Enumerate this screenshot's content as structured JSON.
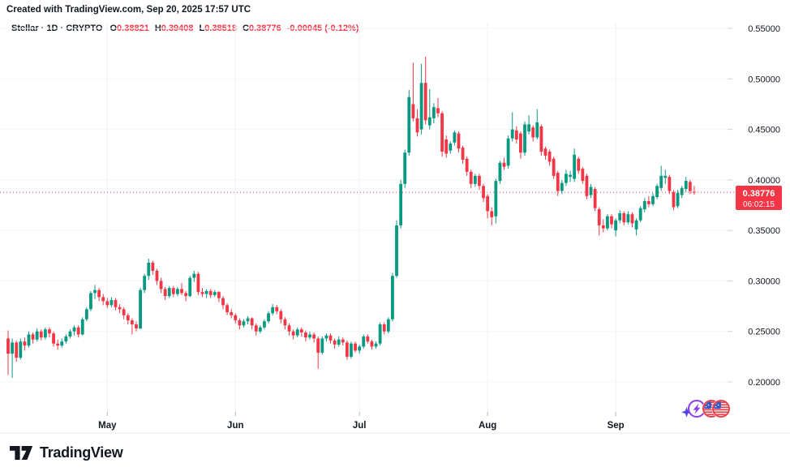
{
  "header": {
    "created_line": "Created with TradingView.com, Sep 20, 2025 17:57 UTC"
  },
  "legend": {
    "title": "Stellar · 1D · CRYPTO",
    "items": [
      {
        "label": "O",
        "value": "0.38821"
      },
      {
        "label": "H",
        "value": "0.39408"
      },
      {
        "label": "L",
        "value": "0.38518"
      },
      {
        "label": "C",
        "value": "0.38776"
      }
    ],
    "change": "-0.00045 (-0.12%)"
  },
  "price_badge": {
    "price": "0.38776",
    "countdown": "06:02:15"
  },
  "footer": {
    "brand": "TradingView"
  },
  "icons": [
    "sparkle-icon",
    "lightning-circle-icon",
    "us-flag-coin-icon",
    "us-flag-coin-icon-2"
  ],
  "colors": {
    "up": "#089981",
    "down": "#F23645",
    "accent_red": "#F23645",
    "text": "#131722",
    "grid_h": "#F6F7F9",
    "grid_v": "#F1F2F5",
    "axis_tick": "#D1D4DC",
    "time_tick": "#B2B5BE",
    "separator": "#E6E8EC",
    "icon_purple": "#8B3BE8",
    "icon_indigo": "#4F46E5",
    "flag_blue": "#3A57C4",
    "flag_red": "#E8414D"
  },
  "chart_data": {
    "type": "candlestick",
    "symbol": "Stellar",
    "interval": "1D",
    "exchange": "CRYPTO",
    "legend_ohlc": {
      "o": 0.38821,
      "h": 0.39408,
      "l": 0.38518,
      "c": 0.38776,
      "change": -0.00045,
      "change_pct": -0.12
    },
    "current_price": 0.38776,
    "countdown": "06:02:15",
    "y_axis": {
      "tick_labels": [
        "0.55000",
        "0.50000",
        "0.45000",
        "0.40000",
        "0.35000",
        "0.30000",
        "0.25000",
        "0.20000"
      ],
      "tick_values": [
        0.55,
        0.5,
        0.45,
        0.4,
        0.35,
        0.3,
        0.25,
        0.2
      ],
      "visible_range": [
        0.17,
        0.556
      ]
    },
    "x_axis": {
      "month_labels": [
        "May",
        "Jun",
        "Jul",
        "Aug",
        "Sep"
      ],
      "month_start_indices": [
        24,
        55,
        85,
        116,
        147
      ]
    },
    "grid": true,
    "candles": [
      [
        0.243,
        0.251,
        0.207,
        0.228
      ],
      [
        0.228,
        0.243,
        0.204,
        0.239
      ],
      [
        0.239,
        0.241,
        0.22,
        0.224
      ],
      [
        0.224,
        0.243,
        0.222,
        0.24
      ],
      [
        0.24,
        0.244,
        0.231,
        0.236
      ],
      [
        0.236,
        0.25,
        0.234,
        0.247
      ],
      [
        0.247,
        0.249,
        0.238,
        0.242
      ],
      [
        0.242,
        0.253,
        0.24,
        0.25
      ],
      [
        0.25,
        0.252,
        0.241,
        0.244
      ],
      [
        0.244,
        0.254,
        0.242,
        0.252
      ],
      [
        0.252,
        0.254,
        0.244,
        0.248
      ],
      [
        0.248,
        0.25,
        0.235,
        0.238
      ],
      [
        0.238,
        0.242,
        0.232,
        0.236
      ],
      [
        0.236,
        0.243,
        0.234,
        0.24
      ],
      [
        0.24,
        0.247,
        0.238,
        0.245
      ],
      [
        0.245,
        0.252,
        0.243,
        0.25
      ],
      [
        0.25,
        0.256,
        0.246,
        0.254
      ],
      [
        0.254,
        0.256,
        0.244,
        0.247
      ],
      [
        0.247,
        0.264,
        0.246,
        0.262
      ],
      [
        0.262,
        0.274,
        0.26,
        0.272
      ],
      [
        0.272,
        0.29,
        0.27,
        0.288
      ],
      [
        0.288,
        0.296,
        0.282,
        0.291
      ],
      [
        0.291,
        0.293,
        0.28,
        0.284
      ],
      [
        0.284,
        0.287,
        0.276,
        0.28
      ],
      [
        0.28,
        0.283,
        0.273,
        0.276
      ],
      [
        0.276,
        0.284,
        0.274,
        0.281
      ],
      [
        0.281,
        0.283,
        0.271,
        0.274
      ],
      [
        0.274,
        0.277,
        0.268,
        0.272
      ],
      [
        0.272,
        0.274,
        0.262,
        0.266
      ],
      [
        0.266,
        0.268,
        0.257,
        0.261
      ],
      [
        0.261,
        0.263,
        0.247,
        0.257
      ],
      [
        0.257,
        0.26,
        0.25,
        0.253
      ],
      [
        0.253,
        0.293,
        0.252,
        0.291
      ],
      [
        0.291,
        0.307,
        0.288,
        0.305
      ],
      [
        0.305,
        0.322,
        0.301,
        0.318
      ],
      [
        0.318,
        0.32,
        0.306,
        0.31
      ],
      [
        0.31,
        0.312,
        0.296,
        0.3
      ],
      [
        0.3,
        0.303,
        0.288,
        0.292
      ],
      [
        0.292,
        0.294,
        0.281,
        0.285
      ],
      [
        0.285,
        0.295,
        0.283,
        0.293
      ],
      [
        0.293,
        0.295,
        0.284,
        0.287
      ],
      [
        0.287,
        0.294,
        0.285,
        0.292
      ],
      [
        0.292,
        0.298,
        0.286,
        0.288
      ],
      [
        0.288,
        0.29,
        0.28,
        0.285
      ],
      [
        0.285,
        0.305,
        0.284,
        0.303
      ],
      [
        0.303,
        0.31,
        0.299,
        0.307
      ],
      [
        0.307,
        0.309,
        0.286,
        0.289
      ],
      [
        0.289,
        0.293,
        0.284,
        0.287
      ],
      [
        0.287,
        0.292,
        0.283,
        0.29
      ],
      [
        0.29,
        0.292,
        0.283,
        0.286
      ],
      [
        0.286,
        0.291,
        0.284,
        0.289
      ],
      [
        0.289,
        0.29,
        0.279,
        0.283
      ],
      [
        0.283,
        0.285,
        0.272,
        0.276
      ],
      [
        0.276,
        0.278,
        0.266,
        0.269
      ],
      [
        0.269,
        0.272,
        0.263,
        0.266
      ],
      [
        0.266,
        0.268,
        0.258,
        0.261
      ],
      [
        0.261,
        0.263,
        0.252,
        0.256
      ],
      [
        0.256,
        0.262,
        0.254,
        0.26
      ],
      [
        0.26,
        0.265,
        0.257,
        0.263
      ],
      [
        0.263,
        0.264,
        0.252,
        0.256
      ],
      [
        0.256,
        0.258,
        0.246,
        0.25
      ],
      [
        0.25,
        0.256,
        0.248,
        0.254
      ],
      [
        0.254,
        0.262,
        0.252,
        0.26
      ],
      [
        0.26,
        0.27,
        0.258,
        0.268
      ],
      [
        0.268,
        0.277,
        0.266,
        0.274
      ],
      [
        0.274,
        0.276,
        0.267,
        0.27
      ],
      [
        0.27,
        0.272,
        0.258,
        0.262
      ],
      [
        0.262,
        0.264,
        0.252,
        0.256
      ],
      [
        0.256,
        0.258,
        0.246,
        0.25
      ],
      [
        0.25,
        0.252,
        0.242,
        0.246
      ],
      [
        0.246,
        0.254,
        0.244,
        0.252
      ],
      [
        0.252,
        0.254,
        0.245,
        0.249
      ],
      [
        0.249,
        0.251,
        0.24,
        0.244
      ],
      [
        0.244,
        0.25,
        0.242,
        0.247
      ],
      [
        0.247,
        0.249,
        0.239,
        0.243
      ],
      [
        0.243,
        0.245,
        0.213,
        0.229
      ],
      [
        0.229,
        0.245,
        0.227,
        0.243
      ],
      [
        0.243,
        0.248,
        0.24,
        0.246
      ],
      [
        0.246,
        0.248,
        0.238,
        0.241
      ],
      [
        0.241,
        0.243,
        0.233,
        0.237
      ],
      [
        0.237,
        0.245,
        0.235,
        0.242
      ],
      [
        0.242,
        0.244,
        0.236,
        0.239
      ],
      [
        0.239,
        0.241,
        0.222,
        0.225
      ],
      [
        0.225,
        0.24,
        0.223,
        0.238
      ],
      [
        0.238,
        0.24,
        0.229,
        0.231
      ],
      [
        0.231,
        0.237,
        0.228,
        0.235
      ],
      [
        0.235,
        0.247,
        0.233,
        0.245
      ],
      [
        0.245,
        0.247,
        0.238,
        0.24
      ],
      [
        0.24,
        0.242,
        0.232,
        0.235
      ],
      [
        0.235,
        0.24,
        0.233,
        0.238
      ],
      [
        0.238,
        0.259,
        0.236,
        0.257
      ],
      [
        0.257,
        0.259,
        0.247,
        0.25
      ],
      [
        0.25,
        0.264,
        0.248,
        0.262
      ],
      [
        0.262,
        0.308,
        0.26,
        0.305
      ],
      [
        0.305,
        0.36,
        0.303,
        0.355
      ],
      [
        0.355,
        0.4,
        0.352,
        0.396
      ],
      [
        0.396,
        0.43,
        0.392,
        0.427
      ],
      [
        0.427,
        0.489,
        0.424,
        0.482
      ],
      [
        0.475,
        0.516,
        0.458,
        0.461
      ],
      [
        0.461,
        0.47,
        0.443,
        0.447
      ],
      [
        0.45,
        0.515,
        0.445,
        0.496
      ],
      [
        0.496,
        0.522,
        0.455,
        0.459
      ],
      [
        0.454,
        0.49,
        0.45,
        0.462
      ],
      [
        0.461,
        0.476,
        0.456,
        0.472
      ],
      [
        0.471,
        0.481,
        0.462,
        0.466
      ],
      [
        0.466,
        0.468,
        0.423,
        0.428
      ],
      [
        0.44,
        0.444,
        0.422,
        0.426
      ],
      [
        0.429,
        0.438,
        0.426,
        0.436
      ],
      [
        0.437,
        0.449,
        0.434,
        0.447
      ],
      [
        0.446,
        0.448,
        0.427,
        0.431
      ],
      [
        0.432,
        0.434,
        0.416,
        0.42
      ],
      [
        0.421,
        0.423,
        0.404,
        0.408
      ],
      [
        0.408,
        0.41,
        0.392,
        0.396
      ],
      [
        0.396,
        0.406,
        0.393,
        0.404
      ],
      [
        0.404,
        0.406,
        0.39,
        0.394
      ],
      [
        0.394,
        0.396,
        0.378,
        0.382
      ],
      [
        0.384,
        0.386,
        0.362,
        0.369
      ],
      [
        0.369,
        0.373,
        0.355,
        0.363
      ],
      [
        0.364,
        0.401,
        0.357,
        0.399
      ],
      [
        0.399,
        0.419,
        0.396,
        0.417
      ],
      [
        0.417,
        0.422,
        0.41,
        0.413
      ],
      [
        0.414,
        0.444,
        0.411,
        0.441
      ],
      [
        0.441,
        0.467,
        0.438,
        0.45
      ],
      [
        0.449,
        0.453,
        0.436,
        0.44
      ],
      [
        0.446,
        0.448,
        0.421,
        0.427
      ],
      [
        0.427,
        0.458,
        0.424,
        0.455
      ],
      [
        0.448,
        0.464,
        0.445,
        0.455
      ],
      [
        0.452,
        0.454,
        0.438,
        0.442
      ],
      [
        0.442,
        0.47,
        0.44,
        0.457
      ],
      [
        0.453,
        0.455,
        0.424,
        0.428
      ],
      [
        0.431,
        0.433,
        0.42,
        0.424
      ],
      [
        0.428,
        0.43,
        0.414,
        0.418
      ],
      [
        0.421,
        0.423,
        0.401,
        0.404
      ],
      [
        0.407,
        0.409,
        0.384,
        0.389
      ],
      [
        0.389,
        0.4,
        0.386,
        0.397
      ],
      [
        0.397,
        0.41,
        0.394,
        0.406
      ],
      [
        0.403,
        0.409,
        0.398,
        0.405
      ],
      [
        0.401,
        0.431,
        0.398,
        0.425
      ],
      [
        0.421,
        0.423,
        0.406,
        0.409
      ],
      [
        0.411,
        0.413,
        0.396,
        0.399
      ],
      [
        0.404,
        0.406,
        0.381,
        0.384
      ],
      [
        0.385,
        0.396,
        0.382,
        0.393
      ],
      [
        0.391,
        0.393,
        0.369,
        0.372
      ],
      [
        0.371,
        0.373,
        0.345,
        0.355
      ],
      [
        0.355,
        0.361,
        0.348,
        0.352
      ],
      [
        0.352,
        0.366,
        0.35,
        0.364
      ],
      [
        0.364,
        0.366,
        0.352,
        0.356
      ],
      [
        0.35,
        0.362,
        0.344,
        0.36
      ],
      [
        0.36,
        0.37,
        0.357,
        0.367
      ],
      [
        0.367,
        0.369,
        0.355,
        0.358
      ],
      [
        0.358,
        0.369,
        0.356,
        0.366
      ],
      [
        0.366,
        0.368,
        0.353,
        0.357
      ],
      [
        0.351,
        0.362,
        0.345,
        0.36
      ],
      [
        0.36,
        0.374,
        0.358,
        0.372
      ],
      [
        0.371,
        0.382,
        0.368,
        0.379
      ],
      [
        0.379,
        0.384,
        0.373,
        0.376
      ],
      [
        0.376,
        0.387,
        0.374,
        0.384
      ],
      [
        0.383,
        0.396,
        0.381,
        0.394
      ],
      [
        0.392,
        0.414,
        0.389,
        0.404
      ],
      [
        0.402,
        0.41,
        0.396,
        0.404
      ],
      [
        0.403,
        0.405,
        0.386,
        0.389
      ],
      [
        0.388,
        0.39,
        0.37,
        0.373
      ],
      [
        0.374,
        0.39,
        0.372,
        0.387
      ],
      [
        0.385,
        0.394,
        0.382,
        0.392
      ],
      [
        0.391,
        0.403,
        0.388,
        0.399
      ],
      [
        0.398,
        0.4,
        0.386,
        0.389
      ],
      [
        0.38821,
        0.39408,
        0.38518,
        0.38776
      ]
    ]
  }
}
